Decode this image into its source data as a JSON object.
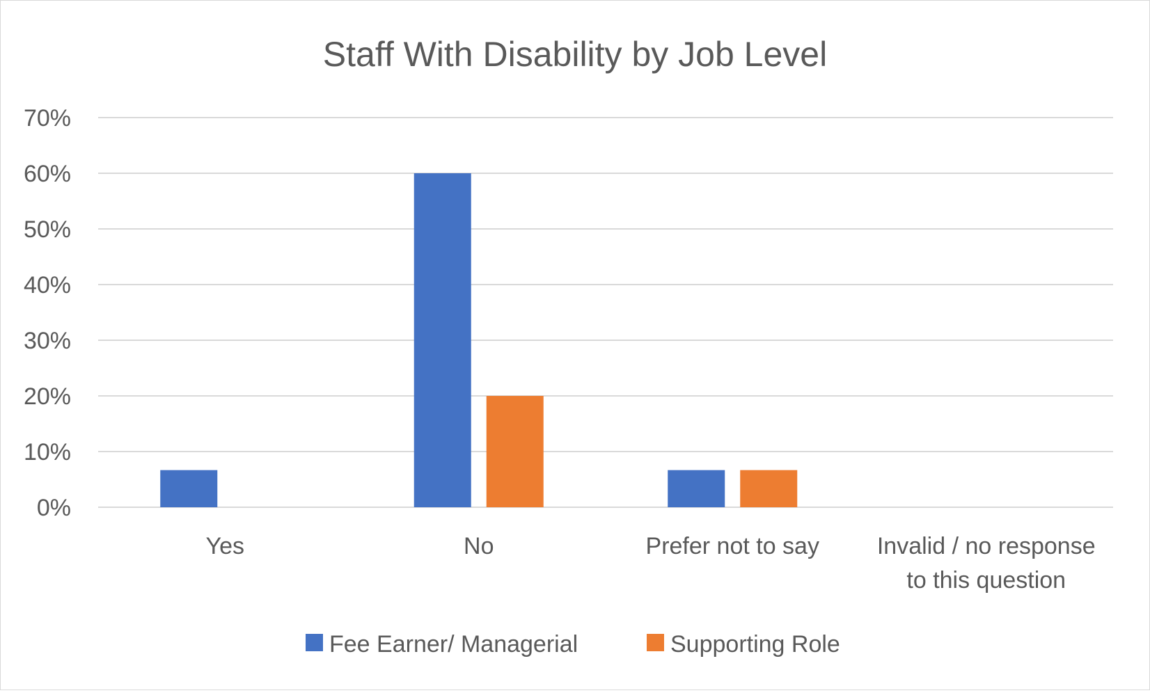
{
  "chart_data": {
    "type": "bar",
    "title": "Staff With Disability by Job Level",
    "xlabel": "",
    "ylabel": "",
    "categories": [
      [
        "Yes"
      ],
      [
        "No"
      ],
      [
        "Prefer not to say"
      ],
      [
        "Invalid / no response",
        "to this question"
      ]
    ],
    "series": [
      {
        "name": "Fee Earner/ Managerial",
        "color": "#4472c4",
        "values": [
          6.67,
          60,
          6.67,
          0
        ]
      },
      {
        "name": "Supporting Role",
        "color": "#ed7d31",
        "values": [
          0,
          20,
          6.67,
          0
        ]
      }
    ],
    "ylim": [
      0,
      70
    ],
    "yticks": [
      0,
      10,
      20,
      30,
      40,
      50,
      60,
      70
    ],
    "ytick_labels": [
      "0%",
      "10%",
      "20%",
      "30%",
      "40%",
      "50%",
      "60%",
      "70%"
    ],
    "grid": true,
    "legend_position": "bottom"
  }
}
